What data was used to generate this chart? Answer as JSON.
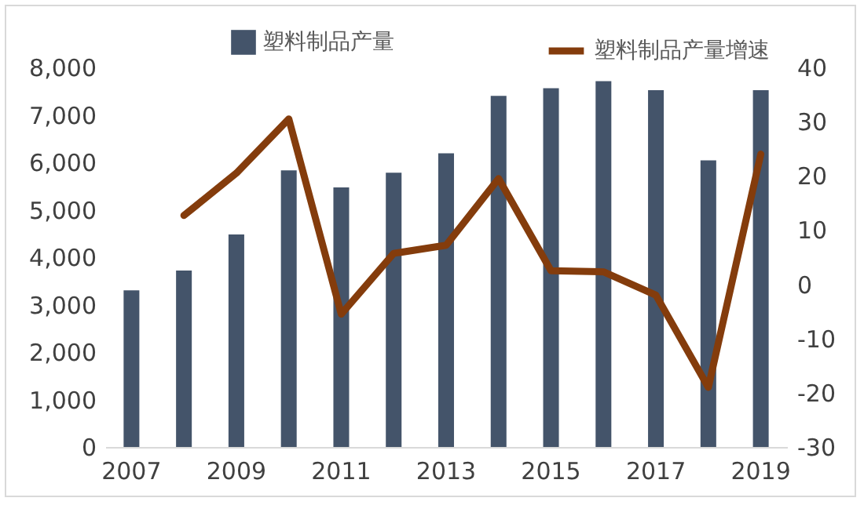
{
  "chart_data": {
    "type": "bar",
    "categories": [
      "2007",
      null,
      "2009",
      null,
      "2011",
      null,
      "2013",
      null,
      "2015",
      null,
      "2017",
      null,
      "2019"
    ],
    "series": [
      {
        "name": "塑料制品产量",
        "color": "#44546a",
        "values": [
          3300,
          3720,
          4480,
          5830,
          5470,
          5780,
          6190,
          7400,
          7560,
          7710,
          7520,
          6040,
          7520
        ]
      },
      {
        "name": "塑料制品产量增速",
        "type": "line",
        "axis": "y2",
        "color": "#843c0c",
        "values": [
          null,
          12.7,
          20.5,
          30.5,
          -5.5,
          5.7,
          7.2,
          19.5,
          2.5,
          2.3,
          -2,
          -19,
          24
        ]
      }
    ],
    "ylim": [
      0,
      8000
    ],
    "yticks": [
      {
        "value": 0,
        "label": "0"
      },
      {
        "value": 1000,
        "label": "1,000"
      },
      {
        "value": 2000,
        "label": "2,000"
      },
      {
        "value": 3000,
        "label": "3,000"
      },
      {
        "value": 4000,
        "label": "4,000"
      },
      {
        "value": 5000,
        "label": "5,000"
      },
      {
        "value": 6000,
        "label": "6,000"
      },
      {
        "value": 7000,
        "label": "7,000"
      },
      {
        "value": 8000,
        "label": "8,000"
      }
    ],
    "y2lim": [
      -30,
      40
    ],
    "y2ticks": [
      -30,
      -20,
      -10,
      0,
      10,
      20,
      30,
      40
    ],
    "legend": "top",
    "grid": false,
    "line_style": "solid",
    "marker": "none"
  }
}
